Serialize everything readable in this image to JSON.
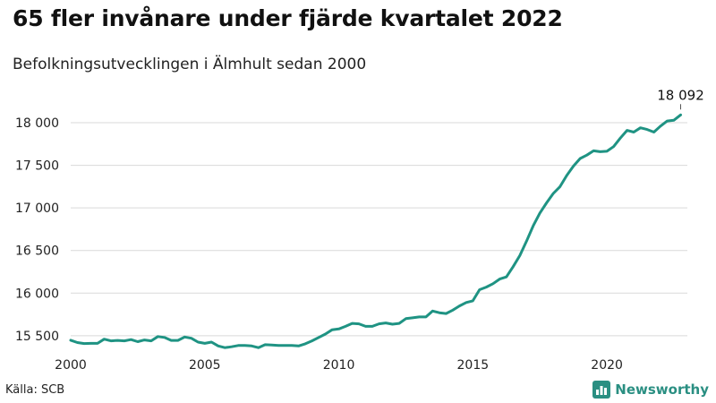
{
  "header": {
    "title": "65 fler invånare under fjärde kvartalet 2022",
    "subtitle": "Befolkningsutvecklingen i Älmhult sedan 2000"
  },
  "footer": {
    "source": "Källa: SCB",
    "brand": "Newsworthy"
  },
  "colors": {
    "line": "#1f9383",
    "grid": "#d9d9d9",
    "brand": "#2a8f82"
  },
  "chart_data": {
    "type": "line",
    "title": "65 fler invånare under fjärde kvartalet 2022",
    "subtitle": "Befolkningsutvecklingen i Älmhult sedan 2000",
    "xlabel": "",
    "ylabel": "",
    "xlim": [
      2000,
      2023
    ],
    "ylim": [
      15320,
      18200
    ],
    "x_ticks": [
      2000,
      2005,
      2010,
      2015,
      2020
    ],
    "x_tick_labels": [
      "2000",
      "2005",
      "2010",
      "2015",
      "2020"
    ],
    "y_ticks": [
      15500,
      16000,
      16500,
      17000,
      17500,
      18000
    ],
    "y_tick_labels": [
      "15 500",
      "16 000",
      "16 500",
      "17 000",
      "17 500",
      "18 000"
    ],
    "grid": "horizontal",
    "annotation": {
      "x": 2022.75,
      "y": 18092,
      "label": "18 092"
    },
    "series": [
      {
        "x": [
          2000.0,
          2000.25,
          2000.5,
          2000.75,
          2001.0,
          2001.25,
          2001.5,
          2001.75,
          2002.0,
          2002.25,
          2002.5,
          2002.75,
          2003.0,
          2003.25,
          2003.5,
          2003.75,
          2004.0,
          2004.25,
          2004.5,
          2004.75,
          2005.0,
          2005.25,
          2005.5,
          2005.75,
          2006.0,
          2006.25,
          2006.5,
          2006.75,
          2007.0,
          2007.25,
          2007.5,
          2007.75,
          2008.0,
          2008.25,
          2008.5,
          2008.75,
          2009.0,
          2009.25,
          2009.5,
          2009.75,
          2010.0,
          2010.25,
          2010.5,
          2010.75,
          2011.0,
          2011.25,
          2011.5,
          2011.75,
          2012.0,
          2012.25,
          2012.5,
          2012.75,
          2013.0,
          2013.25,
          2013.5,
          2013.75,
          2014.0,
          2014.25,
          2014.5,
          2014.75,
          2015.0,
          2015.25,
          2015.5,
          2015.75,
          2016.0,
          2016.25,
          2016.5,
          2016.75,
          2017.0,
          2017.25,
          2017.5,
          2017.75,
          2018.0,
          2018.25,
          2018.5,
          2018.75,
          2019.0,
          2019.25,
          2019.5,
          2019.75,
          2020.0,
          2020.25,
          2020.5,
          2020.75,
          2021.0,
          2021.25,
          2021.5,
          2021.75,
          2022.0,
          2022.25,
          2022.5,
          2022.75
        ],
        "values": [
          15447,
          15420,
          15408,
          15410,
          15410,
          15460,
          15440,
          15445,
          15440,
          15455,
          15430,
          15450,
          15440,
          15490,
          15480,
          15445,
          15445,
          15485,
          15470,
          15425,
          15410,
          15425,
          15380,
          15360,
          15370,
          15385,
          15385,
          15380,
          15360,
          15395,
          15390,
          15385,
          15385,
          15385,
          15380,
          15405,
          15440,
          15480,
          15520,
          15570,
          15580,
          15610,
          15645,
          15640,
          15610,
          15610,
          15640,
          15650,
          15635,
          15645,
          15700,
          15710,
          15720,
          15720,
          15790,
          15770,
          15760,
          15800,
          15850,
          15890,
          15910,
          16040,
          16070,
          16110,
          16165,
          16190,
          16310,
          16440,
          16610,
          16790,
          16940,
          17060,
          17170,
          17250,
          17380,
          17490,
          17580,
          17620,
          17670,
          17660,
          17665,
          17720,
          17820,
          17910,
          17890,
          17940,
          17920,
          17890,
          17960,
          18020,
          18030,
          18092
        ]
      }
    ]
  }
}
